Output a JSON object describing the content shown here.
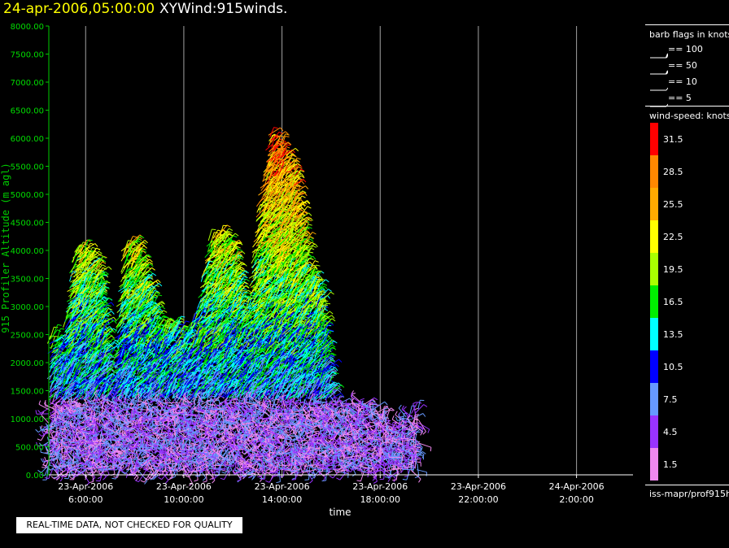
{
  "header": {
    "date": "24-apr-2006,05:00:00",
    "title": "XYWind:915winds."
  },
  "chart_data": {
    "type": "scatter",
    "xlabel": "time",
    "ylabel": "915 Profiler Altitude (m agl)",
    "ylim": [
      0,
      8000
    ],
    "y_ticks": [
      "0.00",
      "500.00",
      "1000.00",
      "1500.00",
      "2000.00",
      "2500.00",
      "3000.00",
      "3500.00",
      "4000.00",
      "4500.00",
      "5000.00",
      "5500.00",
      "6000.00",
      "6500.00",
      "7000.00",
      "7500.00",
      "8000.00"
    ],
    "xlim_hours": [
      4.5,
      28.3
    ],
    "x_ticks": [
      {
        "hour": 6,
        "date": "23-Apr-2006",
        "time": "6:00:00"
      },
      {
        "hour": 10,
        "date": "23-Apr-2006",
        "time": "10:00:00"
      },
      {
        "hour": 14,
        "date": "23-Apr-2006",
        "time": "14:00:00"
      },
      {
        "hour": 18,
        "date": "23-Apr-2006",
        "time": "18:00:00"
      },
      {
        "hour": 22,
        "date": "23-Apr-2006",
        "time": "22:00:00"
      },
      {
        "hour": 26,
        "date": "24-Apr-2006",
        "time": "2:00:00"
      }
    ],
    "grid": "vertical",
    "colors": {
      "axis": "#00cc00",
      "ylabel": "#00cc00",
      "tick_label": "#00dd00",
      "grid": "#cccccc"
    },
    "profile_envelope": [
      {
        "hour": 4.5,
        "top": 2500
      },
      {
        "hour": 5.0,
        "top": 2300
      },
      {
        "hour": 5.5,
        "top": 4000
      },
      {
        "hour": 6.0,
        "top": 4000
      },
      {
        "hour": 6.5,
        "top": 3700
      },
      {
        "hour": 7.0,
        "top": 1500
      },
      {
        "hour": 7.5,
        "top": 4000
      },
      {
        "hour": 8.0,
        "top": 4200
      },
      {
        "hour": 8.5,
        "top": 3300
      },
      {
        "hour": 9.0,
        "top": 2600
      },
      {
        "hour": 9.5,
        "top": 2700
      },
      {
        "hour": 10.0,
        "top": 2500
      },
      {
        "hour": 10.5,
        "top": 2900
      },
      {
        "hour": 11.0,
        "top": 4200
      },
      {
        "hour": 11.5,
        "top": 4300
      },
      {
        "hour": 12.0,
        "top": 4000
      },
      {
        "hour": 12.5,
        "top": 2700
      },
      {
        "hour": 13.0,
        "top": 4800
      },
      {
        "hour": 13.5,
        "top": 6100
      },
      {
        "hour": 14.0,
        "top": 5800
      },
      {
        "hour": 14.5,
        "top": 5300
      },
      {
        "hour": 15.0,
        "top": 3700
      },
      {
        "hour": 15.5,
        "top": 3300
      },
      {
        "hour": 16.0,
        "top": 1300
      },
      {
        "hour": 16.5,
        "top": 1300
      },
      {
        "hour": 17.0,
        "top": 1300
      },
      {
        "hour": 17.5,
        "top": 1300
      },
      {
        "hour": 18.0,
        "top": 1100
      },
      {
        "hour": 18.5,
        "top": 800
      },
      {
        "hour": 19.0,
        "top": 1000
      },
      {
        "hour": 19.5,
        "top": 1200
      }
    ]
  },
  "legend": {
    "barb_title": "barb flags in knots",
    "barbs": [
      {
        "label": "== 100"
      },
      {
        "label": "== 50"
      },
      {
        "label": "== 10"
      },
      {
        "label": "== 5"
      }
    ],
    "colorbar_title": "wind-speed: knots",
    "colorbar": [
      {
        "label": "31.5",
        "color": "#ff0000"
      },
      {
        "label": "28.5",
        "color": "#ff8800"
      },
      {
        "label": "25.5",
        "color": "#ffaa00"
      },
      {
        "label": "22.5",
        "color": "#ffff00"
      },
      {
        "label": "19.5",
        "color": "#aaff00"
      },
      {
        "label": "16.5",
        "color": "#00ee00"
      },
      {
        "label": "13.5",
        "color": "#00ffff"
      },
      {
        "label": "10.5",
        "color": "#0000ff"
      },
      {
        "label": "7.5",
        "color": "#6699ff"
      },
      {
        "label": "4.5",
        "color": "#9933ff"
      },
      {
        "label": "1.5",
        "color": "#ee88ee"
      }
    ],
    "source": "iss-mapr/prof915h"
  },
  "footer": {
    "qc_note": "REAL-TIME DATA, NOT CHECKED FOR QUALITY"
  }
}
